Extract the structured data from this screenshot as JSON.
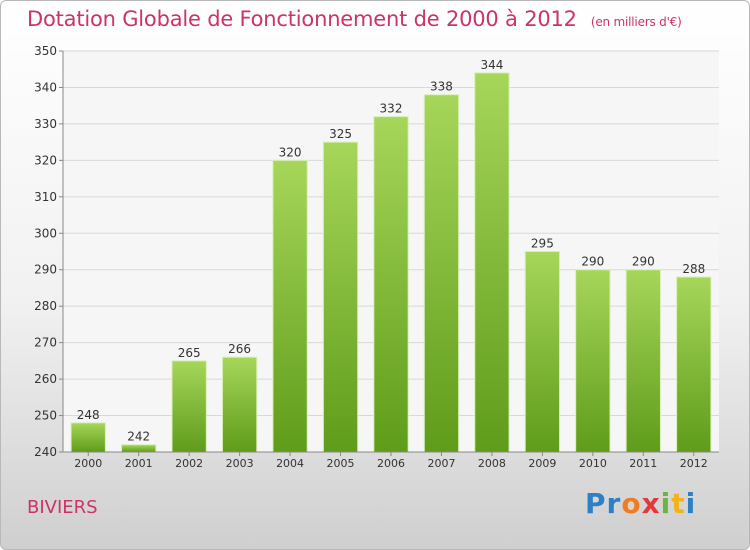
{
  "title": "Dotation Globale de Fonctionnement de 2000 à 2012",
  "subtitle": "(en milliers d'€)",
  "commune": "BIVIERS",
  "logo": {
    "letters": [
      "P",
      "r",
      "o",
      "x",
      "i",
      "t",
      "i"
    ],
    "colors": [
      "#2f7fc6",
      "#2f7fc6",
      "#f07c22",
      "#e23a3a",
      "#6db33f",
      "#f2b21c",
      "#2f7fc6"
    ]
  },
  "colors": {
    "bar_top": "#a6d65a",
    "bar_bottom": "#5f9c1a",
    "title": "#cc3366"
  },
  "chart_data": {
    "type": "bar",
    "categories": [
      "2000",
      "2001",
      "2002",
      "2003",
      "2004",
      "2005",
      "2006",
      "2007",
      "2008",
      "2009",
      "2010",
      "2011",
      "2012"
    ],
    "values": [
      248,
      242,
      265,
      266,
      320,
      325,
      332,
      338,
      344,
      295,
      290,
      290,
      288
    ],
    "data_labels": [
      "248",
      "242",
      "265",
      "266",
      "320",
      "325",
      "332",
      "338",
      "344",
      "295",
      "290",
      "290",
      "288"
    ],
    "yticks": [
      "240",
      "250",
      "260",
      "270",
      "280",
      "290",
      "300",
      "310",
      "320",
      "330",
      "340",
      "350"
    ],
    "ylim": [
      240,
      350
    ],
    "grid": true,
    "legend": "none"
  }
}
